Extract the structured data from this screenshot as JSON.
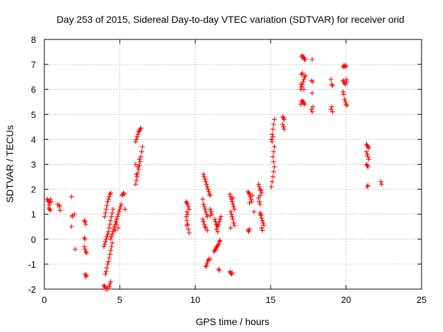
{
  "chart_data": {
    "type": "scatter",
    "title": "Day 253 of 2015, Sidereal Day-to-day VTEC variation (SDTVAR) for receiver orid",
    "xlabel": "GPS time / hours",
    "ylabel": "SDTVAR / TECUs",
    "xlim": [
      0,
      25
    ],
    "ylim": [
      -2,
      8
    ],
    "xticks": [
      0,
      5,
      10,
      15,
      20,
      25
    ],
    "yticks": [
      -2,
      -1,
      0,
      1,
      2,
      3,
      4,
      5,
      6,
      7,
      8
    ],
    "grid": true,
    "marker": "plus",
    "marker_color": "#ff0000",
    "series": [
      {
        "name": "SDTVAR",
        "points": [
          [
            0.2,
            1.6
          ],
          [
            0.25,
            1.55
          ],
          [
            0.3,
            1.5
          ],
          [
            0.35,
            1.45
          ],
          [
            0.3,
            1.35
          ],
          [
            0.35,
            1.2
          ],
          [
            0.4,
            1.15
          ],
          [
            0.45,
            1.5
          ],
          [
            0.4,
            1.6
          ],
          [
            0.3,
            1.25
          ],
          [
            0.9,
            1.4
          ],
          [
            1.0,
            1.35
          ],
          [
            1.0,
            1.3
          ],
          [
            1.05,
            1.15
          ],
          [
            1.8,
            1.7
          ],
          [
            1.85,
            0.95
          ],
          [
            1.85,
            0.9
          ],
          [
            1.8,
            0.5
          ],
          [
            2.05,
            -0.4
          ],
          [
            2.0,
            1.0
          ],
          [
            2.65,
            0.75
          ],
          [
            2.7,
            0.7
          ],
          [
            2.75,
            0.6
          ],
          [
            2.65,
            0.05
          ],
          [
            2.7,
            0.0
          ],
          [
            2.65,
            -0.3
          ],
          [
            2.7,
            -0.4
          ],
          [
            2.75,
            -0.5
          ],
          [
            2.8,
            -0.55
          ],
          [
            2.7,
            -1.4
          ],
          [
            2.8,
            -1.45
          ],
          [
            2.75,
            -1.5
          ],
          [
            3.95,
            -1.85
          ],
          [
            4.0,
            -1.9
          ],
          [
            4.05,
            -1.95
          ],
          [
            4.1,
            -2.0
          ],
          [
            4.2,
            -1.95
          ],
          [
            4.3,
            -1.9
          ],
          [
            4.35,
            -1.8
          ],
          [
            4.4,
            -1.7
          ],
          [
            4.2,
            -2.0
          ],
          [
            4.05,
            -1.4
          ],
          [
            4.1,
            -1.3
          ],
          [
            4.15,
            -1.15
          ],
          [
            4.2,
            -1.0
          ],
          [
            4.25,
            -0.9
          ],
          [
            4.3,
            -0.75
          ],
          [
            4.35,
            -0.6
          ],
          [
            4.4,
            -0.45
          ],
          [
            4.45,
            -0.3
          ],
          [
            4.5,
            -0.15
          ],
          [
            4.4,
            0.0
          ],
          [
            4.45,
            0.1
          ],
          [
            4.5,
            0.2
          ],
          [
            4.55,
            0.3
          ],
          [
            4.6,
            0.4
          ],
          [
            4.65,
            0.5
          ],
          [
            4.7,
            0.6
          ],
          [
            4.75,
            0.7
          ],
          [
            4.8,
            0.8
          ],
          [
            4.85,
            0.9
          ],
          [
            4.9,
            1.0
          ],
          [
            4.95,
            1.1
          ],
          [
            5.0,
            1.2
          ],
          [
            5.05,
            1.3
          ],
          [
            5.1,
            1.4
          ],
          [
            3.95,
            -0.3
          ],
          [
            4.0,
            -0.2
          ],
          [
            4.05,
            -0.1
          ],
          [
            4.1,
            0.0
          ],
          [
            4.15,
            0.1
          ],
          [
            4.2,
            0.2
          ],
          [
            4.25,
            0.3
          ],
          [
            4.3,
            0.45
          ],
          [
            4.35,
            0.6
          ],
          [
            4.4,
            0.75
          ],
          [
            4.45,
            0.9
          ],
          [
            4.5,
            1.05
          ],
          [
            4.55,
            1.2
          ],
          [
            4.0,
            0.9
          ],
          [
            4.05,
            1.05
          ],
          [
            4.1,
            1.2
          ],
          [
            4.15,
            1.35
          ],
          [
            4.2,
            1.5
          ],
          [
            4.25,
            1.6
          ],
          [
            4.3,
            1.7
          ],
          [
            4.35,
            1.8
          ],
          [
            4.4,
            1.85
          ],
          [
            5.15,
            1.75
          ],
          [
            5.2,
            1.8
          ],
          [
            5.25,
            1.85
          ],
          [
            5.3,
            1.8
          ],
          [
            5.35,
            1.2
          ],
          [
            4.7,
            0.35
          ],
          [
            4.8,
            0.6
          ],
          [
            4.9,
            0.45
          ],
          [
            6.05,
            2.2
          ],
          [
            6.1,
            2.35
          ],
          [
            6.15,
            2.5
          ],
          [
            6.2,
            2.65
          ],
          [
            6.25,
            2.8
          ],
          [
            6.3,
            2.95
          ],
          [
            6.35,
            3.1
          ],
          [
            6.4,
            3.3
          ],
          [
            6.45,
            3.5
          ],
          [
            6.5,
            3.7
          ],
          [
            6.05,
            3.9
          ],
          [
            6.1,
            4.0
          ],
          [
            6.15,
            4.1
          ],
          [
            6.2,
            4.2
          ],
          [
            6.25,
            4.3
          ],
          [
            6.3,
            4.35
          ],
          [
            6.35,
            4.4
          ],
          [
            6.4,
            4.45
          ],
          [
            6.1,
            2.6
          ],
          [
            6.2,
            2.9
          ],
          [
            6.3,
            3.2
          ],
          [
            6.05,
            3.0
          ],
          [
            9.4,
            1.5
          ],
          [
            9.45,
            1.45
          ],
          [
            9.5,
            1.4
          ],
          [
            9.55,
            1.3
          ],
          [
            9.6,
            1.2
          ],
          [
            9.45,
            1.1
          ],
          [
            9.5,
            1.0
          ],
          [
            9.4,
            0.9
          ],
          [
            9.45,
            0.75
          ],
          [
            9.5,
            0.6
          ],
          [
            9.55,
            0.4
          ],
          [
            9.6,
            0.25
          ],
          [
            9.45,
            0.55
          ],
          [
            10.5,
            1.6
          ],
          [
            10.55,
            1.4
          ],
          [
            10.6,
            1.3
          ],
          [
            10.65,
            1.2
          ],
          [
            10.7,
            1.1
          ],
          [
            10.75,
            1.0
          ],
          [
            10.8,
            0.9
          ],
          [
            10.5,
            0.8
          ],
          [
            10.55,
            0.7
          ],
          [
            10.6,
            0.6
          ],
          [
            10.65,
            0.5
          ],
          [
            10.7,
            0.45
          ],
          [
            10.8,
            0.35
          ],
          [
            10.55,
            2.6
          ],
          [
            10.6,
            2.5
          ],
          [
            10.65,
            2.4
          ],
          [
            10.7,
            2.3
          ],
          [
            10.75,
            2.2
          ],
          [
            10.8,
            2.1
          ],
          [
            10.85,
            2.0
          ],
          [
            10.9,
            1.9
          ],
          [
            10.95,
            1.8
          ],
          [
            11.0,
            1.75
          ],
          [
            10.7,
            -1.1
          ],
          [
            10.75,
            -1.05
          ],
          [
            10.8,
            -0.95
          ],
          [
            10.85,
            -0.85
          ],
          [
            10.9,
            -0.8
          ],
          [
            11.0,
            -0.8
          ],
          [
            11.0,
            1.2
          ],
          [
            11.05,
            1.1
          ],
          [
            11.1,
            1.0
          ],
          [
            11.0,
            0.95
          ],
          [
            11.3,
            0.8
          ],
          [
            11.35,
            0.7
          ],
          [
            11.4,
            0.6
          ],
          [
            11.45,
            0.55
          ],
          [
            11.5,
            0.5
          ],
          [
            11.55,
            0.6
          ],
          [
            11.6,
            0.7
          ],
          [
            11.65,
            0.8
          ],
          [
            11.7,
            0.9
          ],
          [
            11.4,
            0.4
          ],
          [
            11.5,
            0.3
          ],
          [
            11.25,
            -0.5
          ],
          [
            11.3,
            -0.45
          ],
          [
            11.35,
            -0.4
          ],
          [
            11.4,
            -0.35
          ],
          [
            11.45,
            -0.3
          ],
          [
            11.5,
            -0.25
          ],
          [
            11.55,
            -0.2
          ],
          [
            11.6,
            -0.1
          ],
          [
            11.65,
            -0.05
          ],
          [
            11.55,
            -1.2
          ],
          [
            11.6,
            -1.25
          ],
          [
            12.3,
            1.8
          ],
          [
            12.35,
            1.7
          ],
          [
            12.4,
            1.6
          ],
          [
            12.45,
            1.5
          ],
          [
            12.5,
            1.4
          ],
          [
            12.55,
            1.3
          ],
          [
            12.6,
            1.2
          ],
          [
            12.35,
            1.1
          ],
          [
            12.4,
            1.0
          ],
          [
            12.45,
            0.9
          ],
          [
            12.5,
            0.8
          ],
          [
            12.55,
            0.65
          ],
          [
            12.6,
            0.55
          ],
          [
            12.35,
            0.45
          ],
          [
            12.5,
            1.65
          ],
          [
            12.3,
            -1.3
          ],
          [
            12.35,
            -1.35
          ],
          [
            12.4,
            -1.4
          ],
          [
            12.45,
            -1.35
          ],
          [
            13.5,
            1.9
          ],
          [
            13.55,
            1.85
          ],
          [
            13.6,
            1.8
          ],
          [
            13.65,
            1.7
          ],
          [
            13.7,
            1.6
          ],
          [
            13.75,
            1.5
          ],
          [
            13.6,
            1.45
          ],
          [
            13.5,
            0.35
          ],
          [
            13.55,
            0.3
          ],
          [
            13.6,
            0.4
          ],
          [
            13.8,
            1.75
          ],
          [
            13.9,
            1.1
          ],
          [
            14.2,
            2.2
          ],
          [
            14.25,
            2.1
          ],
          [
            14.3,
            2.0
          ],
          [
            14.35,
            1.95
          ],
          [
            14.4,
            1.85
          ],
          [
            14.3,
            1.75
          ],
          [
            14.2,
            1.65
          ],
          [
            14.25,
            1.5
          ],
          [
            14.3,
            1.4
          ],
          [
            14.3,
            1.05
          ],
          [
            14.35,
            0.95
          ],
          [
            14.4,
            0.85
          ],
          [
            14.45,
            0.75
          ],
          [
            14.5,
            0.65
          ],
          [
            14.55,
            0.55
          ],
          [
            14.4,
            0.45
          ],
          [
            14.45,
            0.35
          ],
          [
            14.35,
            1.0
          ],
          [
            15.05,
            2.1
          ],
          [
            15.1,
            2.3
          ],
          [
            15.15,
            2.5
          ],
          [
            15.2,
            2.7
          ],
          [
            15.25,
            2.9
          ],
          [
            15.2,
            3.1
          ],
          [
            15.15,
            3.3
          ],
          [
            15.2,
            3.5
          ],
          [
            15.25,
            3.7
          ],
          [
            15.05,
            4.0
          ],
          [
            15.1,
            4.2
          ],
          [
            15.15,
            4.4
          ],
          [
            15.2,
            4.6
          ],
          [
            15.25,
            4.8
          ],
          [
            15.1,
            3.9
          ],
          [
            15.15,
            4.1
          ],
          [
            15.8,
            4.9
          ],
          [
            15.85,
            4.85
          ],
          [
            15.9,
            4.8
          ],
          [
            15.8,
            4.6
          ],
          [
            15.85,
            4.5
          ],
          [
            15.9,
            4.4
          ],
          [
            17.0,
            5.4
          ],
          [
            17.05,
            5.5
          ],
          [
            17.1,
            5.55
          ],
          [
            17.15,
            5.5
          ],
          [
            17.2,
            5.45
          ],
          [
            17.25,
            5.4
          ],
          [
            17.0,
            6.0
          ],
          [
            17.05,
            6.1
          ],
          [
            17.1,
            6.2
          ],
          [
            17.15,
            6.3
          ],
          [
            17.2,
            6.4
          ],
          [
            17.25,
            6.5
          ],
          [
            17.3,
            6.55
          ],
          [
            17.05,
            6.6
          ],
          [
            17.1,
            6.65
          ],
          [
            17.0,
            6.2
          ],
          [
            17.2,
            6.0
          ],
          [
            17.05,
            7.3
          ],
          [
            17.1,
            7.35
          ],
          [
            17.15,
            7.3
          ],
          [
            17.2,
            7.25
          ],
          [
            17.25,
            7.2
          ],
          [
            17.3,
            7.2
          ],
          [
            17.75,
            7.2
          ],
          [
            17.7,
            6.35
          ],
          [
            17.8,
            6.3
          ],
          [
            17.75,
            5.85
          ],
          [
            17.7,
            5.2
          ],
          [
            17.75,
            5.1
          ],
          [
            17.8,
            5.3
          ],
          [
            19.0,
            6.4
          ],
          [
            19.05,
            6.2
          ],
          [
            19.1,
            6.15
          ],
          [
            19.05,
            5.3
          ],
          [
            19.0,
            5.2
          ],
          [
            19.1,
            5.1
          ],
          [
            19.8,
            6.9
          ],
          [
            19.85,
            6.95
          ],
          [
            19.9,
            6.95
          ],
          [
            19.95,
            6.9
          ],
          [
            20.0,
            6.95
          ],
          [
            19.8,
            6.35
          ],
          [
            19.85,
            6.3
          ],
          [
            19.9,
            6.25
          ],
          [
            19.95,
            6.2
          ],
          [
            20.0,
            6.4
          ],
          [
            20.05,
            6.3
          ],
          [
            19.8,
            5.9
          ],
          [
            19.85,
            5.8
          ],
          [
            19.9,
            5.6
          ],
          [
            19.95,
            5.5
          ],
          [
            20.0,
            5.4
          ],
          [
            20.05,
            5.35
          ],
          [
            21.35,
            3.8
          ],
          [
            21.4,
            3.75
          ],
          [
            21.45,
            3.7
          ],
          [
            21.5,
            3.65
          ],
          [
            21.35,
            3.5
          ],
          [
            21.4,
            3.4
          ],
          [
            21.45,
            3.3
          ],
          [
            21.5,
            3.2
          ],
          [
            21.35,
            3.0
          ],
          [
            21.4,
            2.95
          ],
          [
            21.45,
            2.9
          ],
          [
            21.4,
            2.1
          ],
          [
            21.45,
            2.15
          ],
          [
            22.3,
            2.3
          ],
          [
            22.35,
            2.2
          ]
        ]
      }
    ]
  }
}
